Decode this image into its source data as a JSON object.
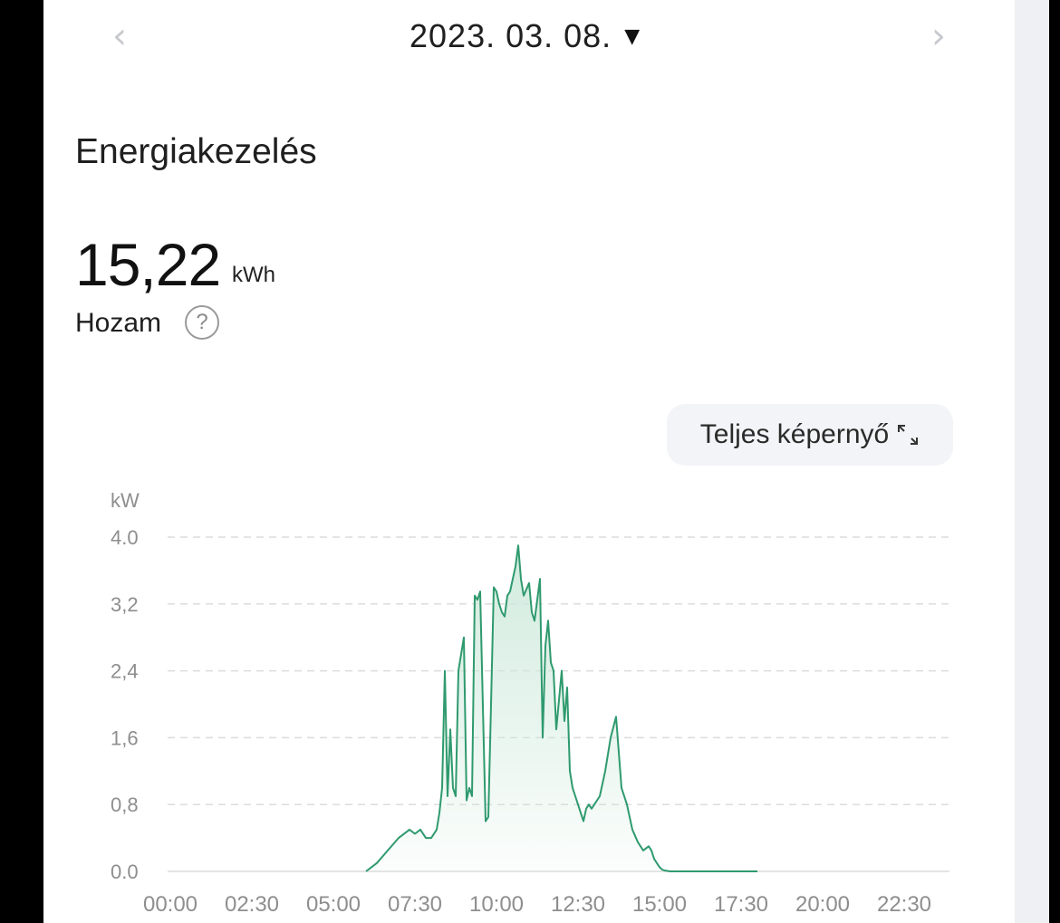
{
  "header": {
    "prev_icon": "chevron-left-icon",
    "date": "2023. 03. 08.",
    "dropdown_icon": "caret-down-icon",
    "next_icon": "chevron-right-icon"
  },
  "section": {
    "title": "Energiakezelés"
  },
  "summary": {
    "value": "15,22",
    "unit": "kWh",
    "label": "Hozam",
    "help_icon": "question-circle-icon",
    "help_glyph": "?"
  },
  "fullscreen": {
    "label": "Teljes képernyő",
    "icon": "expand-icon"
  },
  "colors": {
    "line": "#2f9a6e",
    "fill_top": "#cfeadc",
    "grid": "#dcdcdc"
  },
  "chart_data": {
    "type": "area",
    "ylabel": "kW",
    "ylim": [
      0,
      4.0
    ],
    "y_ticks": [
      "4.0",
      "3,2",
      "2,4",
      "1,6",
      "0,8",
      "0.0"
    ],
    "x_ticks": [
      "00:00",
      "02:30",
      "05:00",
      "07:30",
      "10:00",
      "12:30",
      "15:00",
      "17:30",
      "20:00",
      "22:30"
    ],
    "grid": "horizontal-dashed",
    "series": [
      {
        "x": [
          "06:00",
          "06:20",
          "06:40",
          "07:00",
          "07:20",
          "07:30",
          "07:40",
          "07:50",
          "08:00",
          "08:10",
          "08:15",
          "08:20",
          "08:25",
          "08:30",
          "08:35",
          "08:40",
          "08:45",
          "08:50",
          "09:00",
          "09:05",
          "09:10",
          "09:15",
          "09:20",
          "09:25",
          "09:30",
          "09:40",
          "09:45",
          "09:50",
          "09:55",
          "10:00",
          "10:05",
          "10:10",
          "10:15",
          "10:20",
          "10:25",
          "10:30",
          "10:35",
          "10:40",
          "10:45",
          "10:50",
          "11:00",
          "11:05",
          "11:10",
          "11:15",
          "11:20",
          "11:25",
          "11:30",
          "11:35",
          "11:40",
          "11:45",
          "11:50",
          "12:00",
          "12:05",
          "12:10",
          "12:15",
          "12:20",
          "12:25",
          "12:30",
          "12:35",
          "12:40",
          "12:45",
          "12:50",
          "12:55",
          "13:00",
          "13:10",
          "13:20",
          "13:30",
          "13:40",
          "13:50",
          "14:00",
          "14:10",
          "14:20",
          "14:30",
          "14:40",
          "14:45",
          "14:50",
          "14:55",
          "15:00",
          "15:05",
          "15:10",
          "15:20",
          "15:30",
          "15:40",
          "15:50",
          "16:00",
          "16:10",
          "16:20",
          "16:30",
          "16:40",
          "17:00",
          "17:20",
          "17:40",
          "18:00"
        ],
        "values": [
          0.0,
          0.1,
          0.25,
          0.4,
          0.5,
          0.45,
          0.5,
          0.4,
          0.4,
          0.5,
          0.7,
          1.0,
          2.4,
          0.9,
          1.7,
          1.0,
          0.9,
          2.4,
          2.8,
          0.85,
          1.0,
          0.9,
          3.3,
          3.25,
          3.35,
          0.6,
          0.65,
          2.0,
          3.4,
          3.35,
          3.2,
          3.1,
          3.05,
          3.3,
          3.35,
          3.5,
          3.65,
          3.9,
          3.5,
          3.3,
          3.45,
          3.1,
          3.0,
          3.25,
          3.5,
          1.6,
          2.7,
          3.0,
          2.5,
          2.4,
          1.7,
          2.4,
          1.8,
          2.2,
          1.2,
          1.0,
          0.9,
          0.8,
          0.7,
          0.6,
          0.75,
          0.8,
          0.75,
          0.8,
          0.9,
          1.2,
          1.6,
          1.85,
          1.0,
          0.8,
          0.5,
          0.35,
          0.25,
          0.3,
          0.25,
          0.15,
          0.1,
          0.05,
          0.02,
          0.01,
          0.0,
          0.0,
          0.0,
          0.0,
          0.0,
          0.0,
          0.0,
          0.0,
          0.0,
          0.0,
          0.0,
          0.0,
          0.0
        ]
      }
    ]
  }
}
